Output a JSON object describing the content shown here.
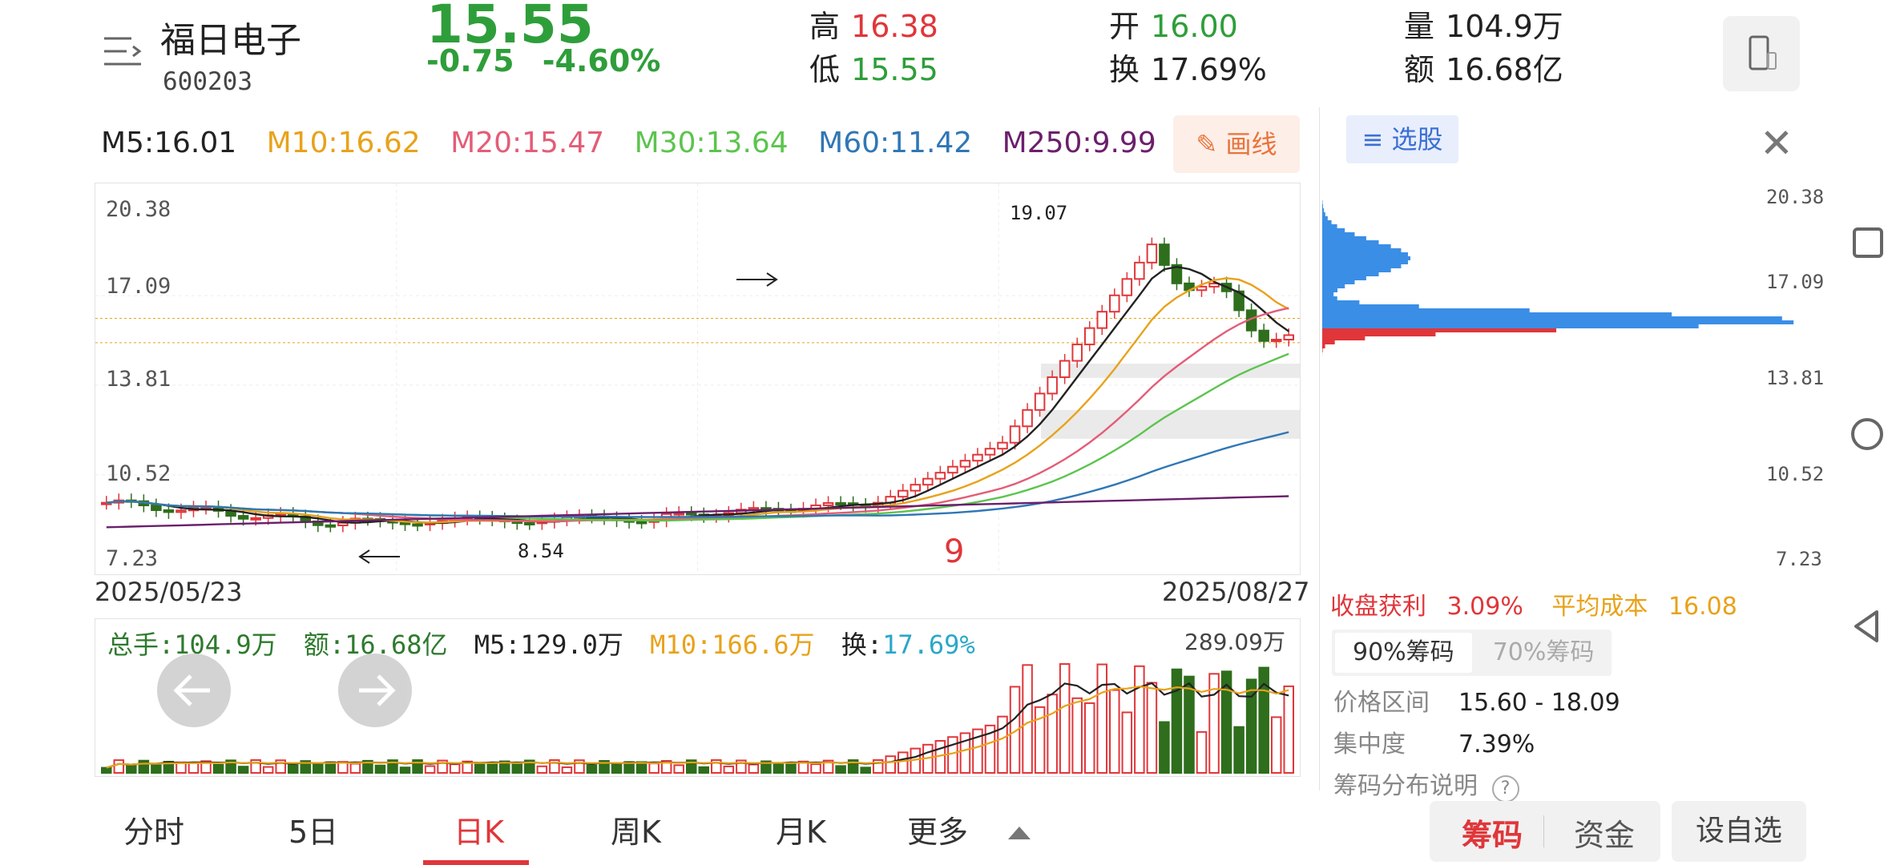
{
  "header": {
    "stock_name": "福日电子",
    "stock_code": "600203",
    "price": "15.55",
    "change": "-0.75",
    "change_pct": "-4.60%",
    "high_label": "高",
    "high": "16.38",
    "low_label": "低",
    "low": "15.55",
    "open_label": "开",
    "open": "16.00",
    "turnover_label": "换",
    "turnover": "17.69%",
    "volume_label": "量",
    "volume": "104.9万",
    "amount_label": "额",
    "amount": "16.68亿"
  },
  "ma": {
    "m5": "M5:16.01",
    "m10": "M10:16.62",
    "m20": "M20:15.47",
    "m30": "M30:13.64",
    "m60": "M60:11.42",
    "m250": "M250:9.99",
    "draw_label": "画线"
  },
  "chart": {
    "y_ticks": [
      "20.38",
      "17.09",
      "13.81",
      "10.52",
      "7.23"
    ],
    "high_annot": "19.07",
    "low_annot": "8.54",
    "date_start": "2025/05/23",
    "date_end": "2025/08/27",
    "marker_9": "9"
  },
  "volume": {
    "total": "总手:104.9万",
    "amount": "额:16.68亿",
    "m5": "M5:129.0万",
    "m10": "M10:166.6万",
    "turn_label": "换:",
    "turn": "17.69%",
    "max": "289.09万"
  },
  "chips": {
    "select_label": "选股",
    "ticks": [
      "20.38",
      "17.09",
      "13.81",
      "10.52",
      "7.23"
    ],
    "profit_label": "收盘获利",
    "profit": "3.09%",
    "avg_cost_label": "平均成本",
    "avg_cost": "16.08",
    "tab_90": "90%筹码",
    "tab_70": "70%筹码",
    "range_label": "价格区间",
    "range": "15.60 - 18.09",
    "conc_label": "集中度",
    "conc": "7.39%",
    "explain": "筹码分布说明"
  },
  "tabs": {
    "items": [
      "分时",
      "5日",
      "日K",
      "周K",
      "月K",
      "更多"
    ],
    "chips_tab": "筹码",
    "funds_tab": "资金",
    "watch_btn": "设自选"
  },
  "colors": {
    "up": "#e0363a",
    "down": "#2e9e3a",
    "m5": "#222222",
    "m10": "#e8a21a",
    "m20": "#e35d77",
    "m30": "#5cc44e",
    "m60": "#2f77b5",
    "m250": "#6b1f6b"
  }
}
